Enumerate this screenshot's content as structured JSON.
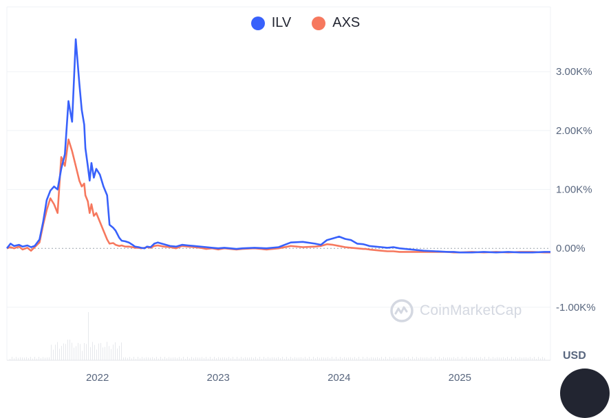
{
  "legend": {
    "items": [
      {
        "label": "ILV",
        "color": "#3861fb"
      },
      {
        "label": "AXS",
        "color": "#f6785e"
      }
    ]
  },
  "watermark": {
    "text": "CoinMarketCap"
  },
  "currency_label": "USD",
  "colors": {
    "grid": "#eff2f5",
    "zero_line": "#9aa2ad",
    "volume": "#e6e8ec"
  },
  "chart_data": {
    "type": "line",
    "y_unit": "%",
    "ylim": [
      -1900,
      4100
    ],
    "x_start": 2021.25,
    "x_end": 2025.75,
    "x_ticks": [
      {
        "value": 2022,
        "label": "2022"
      },
      {
        "value": 2023,
        "label": "2023"
      },
      {
        "value": 2024,
        "label": "2024"
      },
      {
        "value": 2025,
        "label": "2025"
      }
    ],
    "y_ticks": [
      {
        "value": 3000,
        "label": "3.00K%"
      },
      {
        "value": 2000,
        "label": "2.00K%"
      },
      {
        "value": 1000,
        "label": "1.00K%"
      },
      {
        "value": 0,
        "label": "0.00%"
      },
      {
        "value": -1000,
        "label": "-1.00K%"
      }
    ],
    "series": [
      {
        "name": "ILV",
        "color": "#3861fb",
        "x": [
          2021.25,
          2021.28,
          2021.31,
          2021.35,
          2021.38,
          2021.42,
          2021.45,
          2021.48,
          2021.52,
          2021.55,
          2021.58,
          2021.61,
          2021.64,
          2021.67,
          2021.7,
          2021.73,
          2021.76,
          2021.79,
          2021.82,
          2021.85,
          2021.87,
          2021.89,
          2021.9,
          2021.92,
          2021.935,
          2021.95,
          2021.97,
          2021.99,
          2022.02,
          2022.05,
          2022.08,
          2022.1,
          2022.13,
          2022.15,
          2022.18,
          2022.2,
          2022.23,
          2022.26,
          2022.29,
          2022.31,
          2022.34,
          2022.36,
          2022.39,
          2022.41,
          2022.44,
          2022.47,
          2022.5,
          2022.55,
          2022.6,
          2022.65,
          2022.7,
          2022.75,
          2022.8,
          2022.85,
          2022.9,
          2022.95,
          2023.0,
          2023.05,
          2023.1,
          2023.15,
          2023.2,
          2023.3,
          2023.4,
          2023.5,
          2023.6,
          2023.7,
          2023.8,
          2023.85,
          2023.9,
          2023.95,
          2024.0,
          2024.05,
          2024.1,
          2024.15,
          2024.2,
          2024.22,
          2024.25,
          2024.3,
          2024.35,
          2024.4,
          2024.45,
          2024.5,
          2024.6,
          2024.7,
          2024.8,
          2024.9,
          2024.95,
          2025.0,
          2025.1,
          2025.2,
          2025.3,
          2025.4,
          2025.5,
          2025.6,
          2025.7,
          2025.75
        ],
        "y": [
          0,
          80,
          40,
          60,
          30,
          50,
          20,
          40,
          150,
          450,
          820,
          980,
          1050,
          1000,
          1350,
          1600,
          2500,
          2150,
          3550,
          2800,
          2350,
          2100,
          1700,
          1400,
          1150,
          1450,
          1200,
          1350,
          1250,
          1050,
          900,
          400,
          350,
          300,
          180,
          130,
          120,
          100,
          60,
          30,
          20,
          10,
          0,
          30,
          20,
          80,
          100,
          70,
          40,
          30,
          60,
          50,
          40,
          30,
          20,
          10,
          0,
          10,
          0,
          -10,
          0,
          10,
          0,
          20,
          100,
          110,
          80,
          60,
          140,
          170,
          200,
          160,
          140,
          80,
          70,
          60,
          40,
          30,
          20,
          10,
          20,
          0,
          -20,
          -40,
          -50,
          -60,
          -60,
          -70,
          -70,
          -60,
          -70,
          -60,
          -70,
          -70,
          -60,
          -60
        ]
      },
      {
        "name": "AXS",
        "color": "#f6785e",
        "x": [
          2021.25,
          2021.28,
          2021.31,
          2021.35,
          2021.38,
          2021.42,
          2021.45,
          2021.48,
          2021.52,
          2021.55,
          2021.58,
          2021.61,
          2021.64,
          2021.67,
          2021.7,
          2021.73,
          2021.76,
          2021.79,
          2021.82,
          2021.85,
          2021.87,
          2021.89,
          2021.9,
          2021.92,
          2021.935,
          2021.95,
          2021.97,
          2021.99,
          2022.02,
          2022.05,
          2022.08,
          2022.1,
          2022.13,
          2022.15,
          2022.18,
          2022.2,
          2022.23,
          2022.26,
          2022.29,
          2022.31,
          2022.34,
          2022.36,
          2022.39,
          2022.41,
          2022.44,
          2022.47,
          2022.5,
          2022.55,
          2022.6,
          2022.65,
          2022.7,
          2022.75,
          2022.8,
          2022.85,
          2022.9,
          2022.95,
          2023.0,
          2023.05,
          2023.1,
          2023.15,
          2023.2,
          2023.3,
          2023.4,
          2023.5,
          2023.6,
          2023.7,
          2023.8,
          2023.85,
          2023.9,
          2023.95,
          2024.0,
          2024.05,
          2024.1,
          2024.15,
          2024.2,
          2024.22,
          2024.25,
          2024.3,
          2024.35,
          2024.4,
          2024.45,
          2024.5,
          2024.6,
          2024.7,
          2024.8,
          2024.9,
          2024.95,
          2025.0,
          2025.1,
          2025.2,
          2025.3,
          2025.4,
          2025.5,
          2025.6,
          2025.7,
          2025.75
        ],
        "y": [
          0,
          20,
          0,
          30,
          -20,
          10,
          -40,
          20,
          100,
          400,
          650,
          850,
          750,
          600,
          1550,
          1400,
          1850,
          1650,
          1400,
          1150,
          1050,
          1100,
          900,
          800,
          600,
          750,
          550,
          600,
          450,
          300,
          150,
          80,
          90,
          60,
          40,
          50,
          30,
          30,
          20,
          10,
          10,
          0,
          10,
          20,
          10,
          40,
          50,
          30,
          20,
          0,
          40,
          30,
          20,
          10,
          -10,
          0,
          -20,
          0,
          -10,
          -20,
          -10,
          0,
          -20,
          0,
          40,
          20,
          30,
          40,
          70,
          60,
          40,
          20,
          10,
          0,
          -10,
          -10,
          -20,
          -30,
          -40,
          -50,
          -50,
          -60,
          -60,
          -60,
          -60,
          -60,
          -70,
          -70,
          -60,
          -70,
          -60,
          -70,
          -60,
          -60,
          -70,
          -70
        ]
      }
    ]
  }
}
